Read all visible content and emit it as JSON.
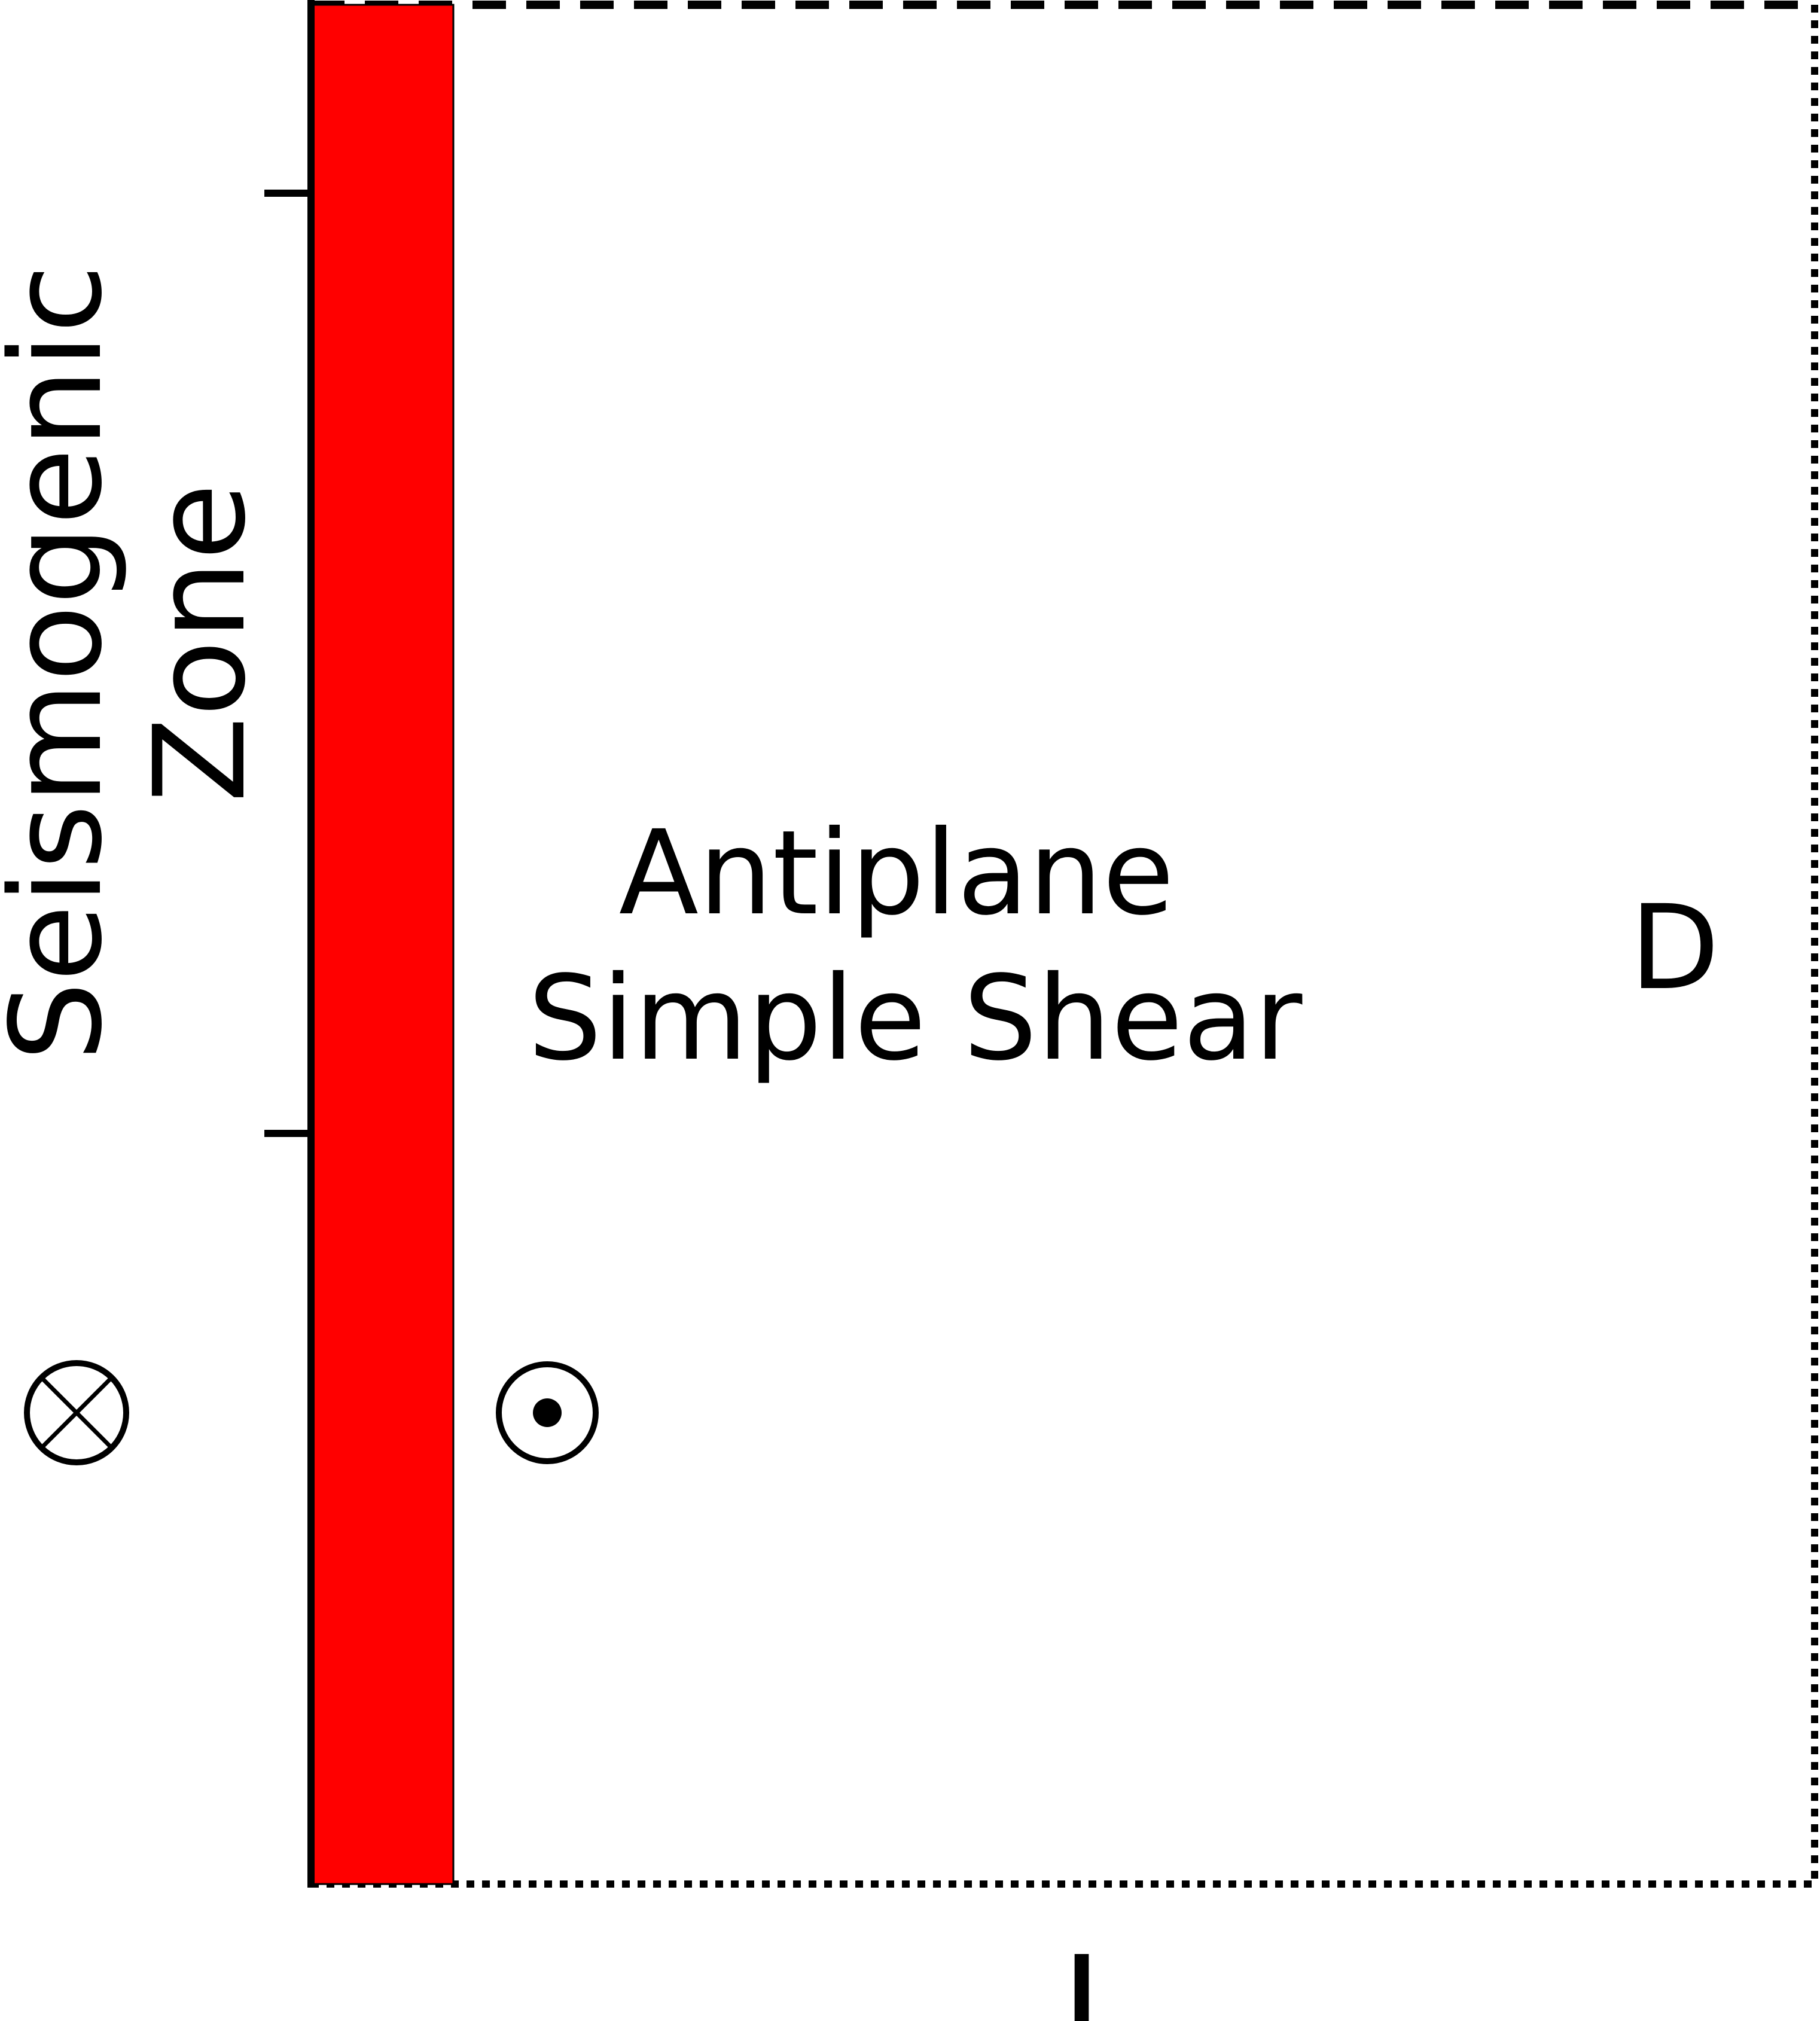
{
  "diagram": {
    "side_label": {
      "line1": "Seismogenic",
      "line2": "Zone"
    },
    "center_label": {
      "line1": "Antiplane",
      "line2": "Simple Shear"
    },
    "depth_label": "D",
    "length_label": "L",
    "colors": {
      "fault_zone": "#ff0000",
      "lines": "#000000",
      "background": "#ffffff"
    },
    "icons": {
      "left_motion": "into-page-symbol",
      "right_motion": "out-of-page-symbol"
    }
  }
}
